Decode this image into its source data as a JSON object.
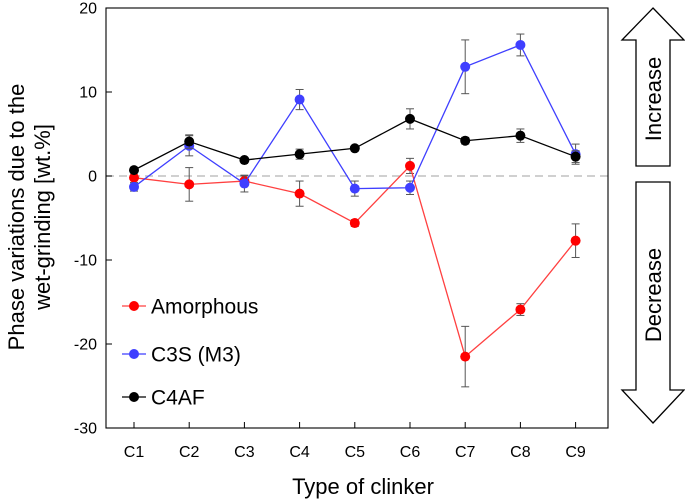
{
  "chart_data": {
    "type": "line",
    "title": "",
    "xlabel": "Type of clinker",
    "ylabel_line1": "Phase variations due to the",
    "ylabel_line2": "wet-grinding [wt.%]",
    "categories": [
      "C1",
      "C2",
      "C3",
      "C4",
      "C5",
      "C6",
      "C7",
      "C8",
      "C9"
    ],
    "ylim": [
      -30,
      20
    ],
    "yticks": [
      20,
      10,
      0,
      -10,
      -20,
      -30
    ],
    "reference_line": 0,
    "legend_position": "lower-left",
    "series": [
      {
        "name": "Amorphous",
        "color": "#ff0000",
        "line_color": "#ff4040",
        "values": [
          -0.2,
          -1.0,
          -0.6,
          -2.1,
          -5.6,
          1.2,
          -21.5,
          -15.9,
          -7.7
        ],
        "errors": [
          0.6,
          2.0,
          0.6,
          1.5,
          0.4,
          0.9,
          3.6,
          0.7,
          2.0
        ]
      },
      {
        "name": "C3S (M3)",
        "color": "#3f3fff",
        "line_color": "#3f3fff",
        "values": [
          -1.3,
          3.6,
          -0.9,
          9.1,
          -1.5,
          -1.4,
          13.0,
          15.6,
          2.6
        ],
        "errors": [
          0.5,
          1.2,
          1.0,
          1.2,
          0.9,
          0.8,
          3.2,
          1.3,
          1.2
        ]
      },
      {
        "name": "C4AF",
        "color": "#000000",
        "line_color": "#000000",
        "values": [
          0.7,
          4.1,
          1.9,
          2.6,
          3.3,
          6.8,
          4.2,
          4.8,
          2.3
        ],
        "errors": [
          0.3,
          0.8,
          0.3,
          0.6,
          0.3,
          1.2,
          0.4,
          0.8,
          0.7
        ]
      }
    ]
  },
  "arrows": {
    "increase_label": "Increase",
    "decrease_label": "Decrease"
  }
}
